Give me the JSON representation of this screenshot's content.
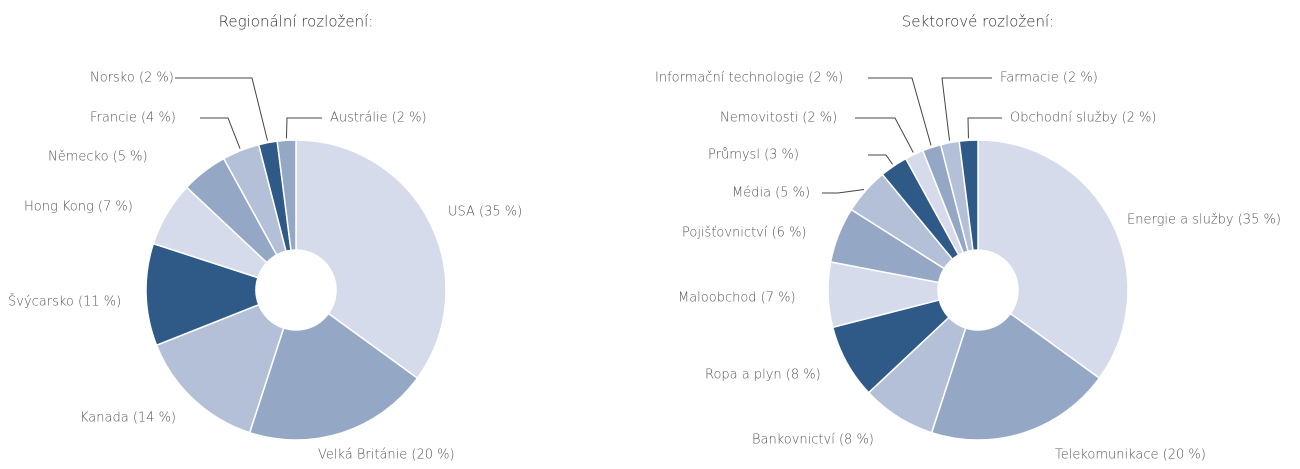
{
  "chart_data": [
    {
      "type": "pie",
      "title": "Regionální rozložení:",
      "values": [
        35,
        20,
        14,
        11,
        7,
        5,
        4,
        2,
        2
      ],
      "value_labels": [
        "USA (35 %)",
        "Velká Británie (20 %)",
        "Kanada (14 %)",
        "Švýcarsko (11 %)",
        "Hong Kong (7 %)",
        "Německo (5 %)",
        "Francie (4 %)",
        "Norsko (2 %)",
        "Austrálie (2 %)"
      ],
      "colors": [
        "#d5dbea",
        "#94a8c6",
        "#b3c0d7",
        "#2f5a88",
        "#d5dbea",
        "#94a8c6",
        "#b3c0d7",
        "#2f5a88",
        "#94a8c6"
      ]
    },
    {
      "type": "pie",
      "title": "Sektorové rozložení:",
      "values": [
        35,
        20,
        8,
        8,
        7,
        6,
        5,
        3,
        2,
        2,
        2,
        2
      ],
      "value_labels": [
        "Energie a služby (35 %)",
        "Telekomunikace (20 %)",
        "Bankovnictví (8 %)",
        "Ropa a plyn (8 %)",
        "Maloobchod (7 %)",
        "Pojišťovnictví (6 %)",
        "Média (5 %)",
        "Průmysl (3 %)",
        "Nemovitosti (2 %)",
        "Informační technologie (2 %)",
        "Farmacie (2 %)",
        "Obchodní služby (2 %)"
      ],
      "colors": [
        "#d5dbea",
        "#94a8c6",
        "#b3c0d7",
        "#2f5a88",
        "#d5dbea",
        "#94a8c6",
        "#b3c0d7",
        "#2f5a88",
        "#d5dbea",
        "#94a8c6",
        "#b3c0d7",
        "#2f5a88"
      ]
    }
  ]
}
